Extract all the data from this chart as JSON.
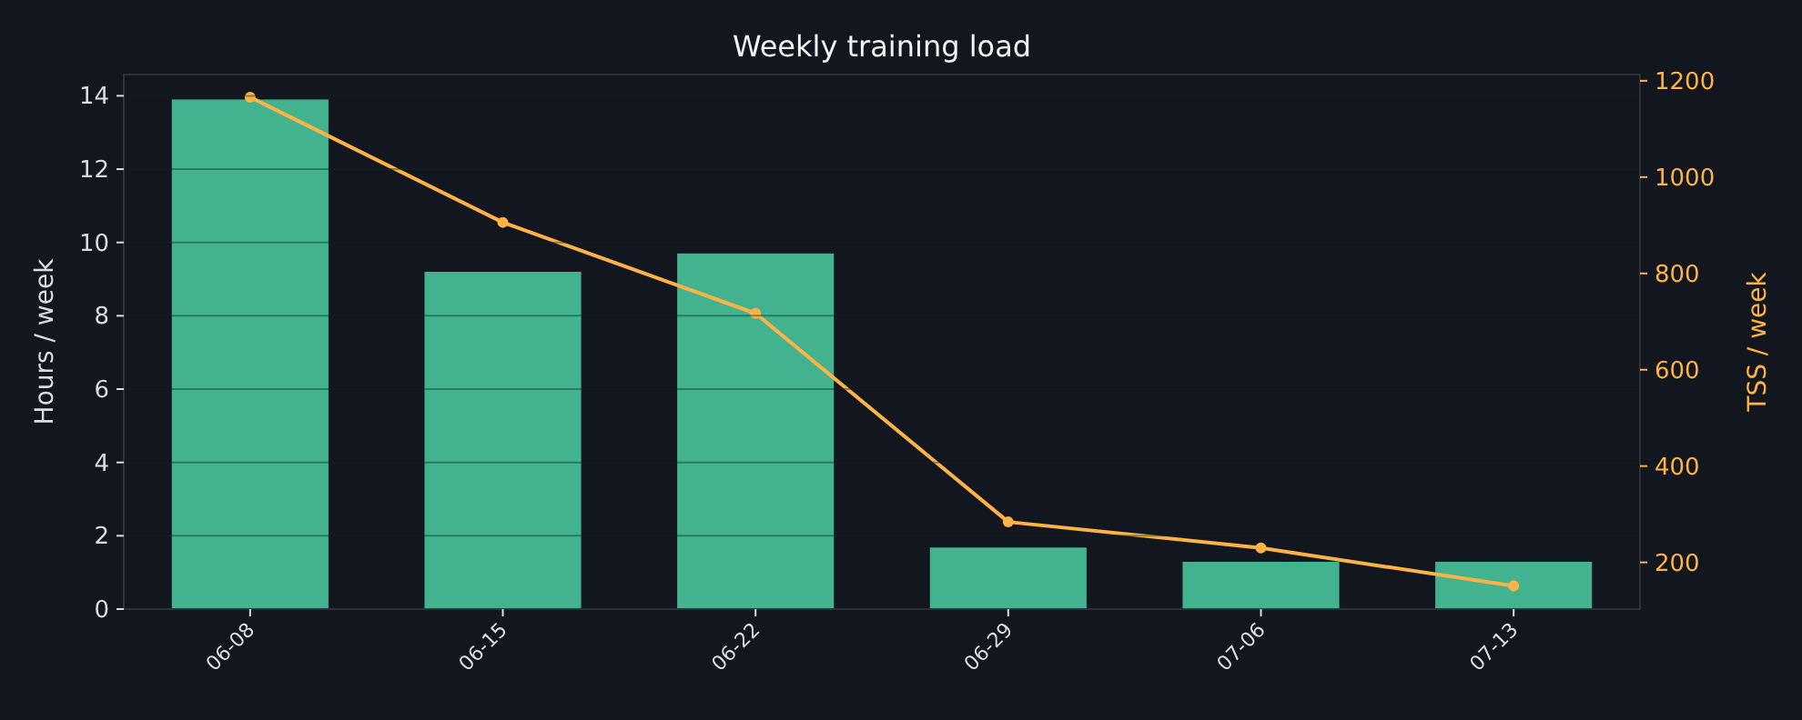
{
  "chart_data": {
    "type": "bar",
    "title": "Weekly training load",
    "ylabel": "Hours / week",
    "y2label": "TSS / week",
    "categories": [
      "06-08",
      "06-15",
      "06-22",
      "06-29",
      "07-06",
      "07-13"
    ],
    "series": [
      {
        "color": "#43b38f",
        "values": [
          13.9,
          9.2,
          9.7,
          1.68,
          1.29,
          1.29
        ]
      },
      {
        "type": "line",
        "axis": "y2",
        "color": "#ffb347",
        "marker": "circle",
        "values": [
          1166,
          906,
          717,
          284,
          230,
          151
        ]
      }
    ],
    "ylim": [
      0,
      14.58
    ],
    "yticks": [
      0,
      2,
      4,
      6,
      8,
      10,
      12,
      14
    ],
    "y2lim": [
      103,
      1213
    ],
    "y2ticks": [
      200,
      400,
      600,
      800,
      1000,
      1200
    ],
    "grid": "y"
  }
}
